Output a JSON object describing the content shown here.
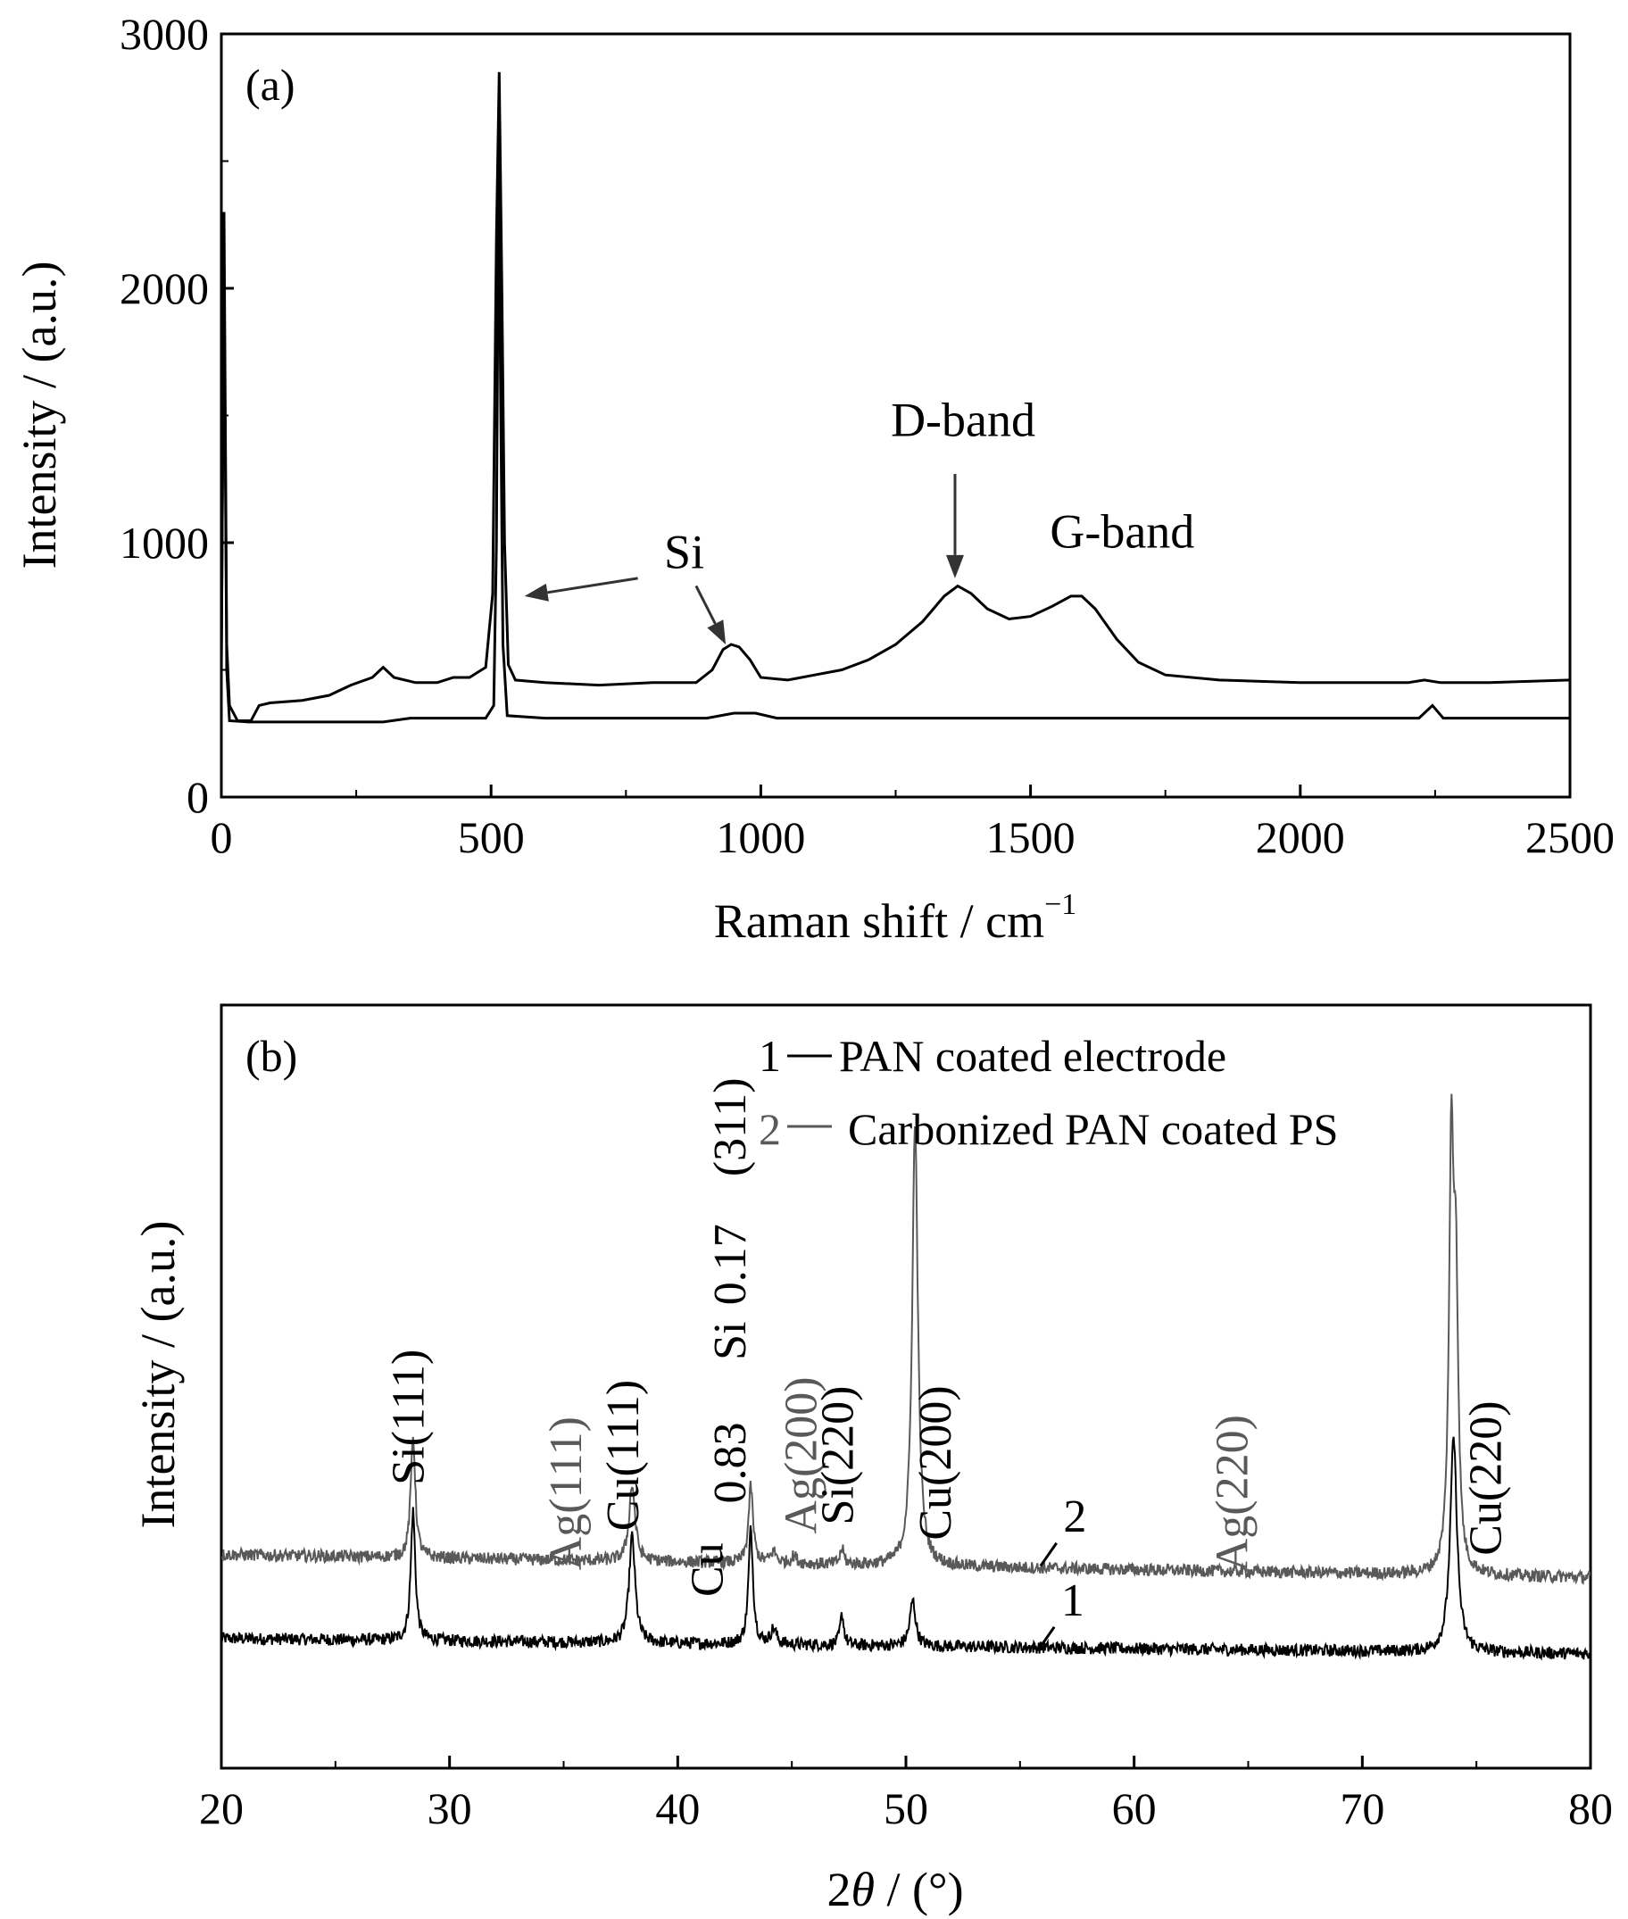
{
  "chart_data": [
    {
      "type": "line",
      "panel_label": "(a)",
      "xlabel": "Raman shift / cm",
      "xlabel_sup": "−1",
      "ylabel": "Intensity / (a.u.)",
      "xlim": [
        0,
        2500
      ],
      "ylim": [
        0,
        3000
      ],
      "xticks": [
        0,
        500,
        1000,
        1500,
        2000,
        2500
      ],
      "yticks": [
        0,
        1000,
        2000,
        3000
      ],
      "xtick_labels": [
        "0",
        "500",
        "1000",
        "1500",
        "2000",
        "2500"
      ],
      "ytick_labels": [
        "0",
        "1000",
        "2000",
        "3000"
      ],
      "grid": false,
      "series": [
        {
          "color": "#000000",
          "points": [
            [
              0,
              480
            ],
            [
              5,
              2300
            ],
            [
              10,
              600
            ],
            [
              15,
              360
            ],
            [
              30,
              300
            ],
            [
              55,
              300
            ],
            [
              70,
              360
            ],
            [
              90,
              370
            ],
            [
              150,
              380
            ],
            [
              200,
              400
            ],
            [
              240,
              440
            ],
            [
              280,
              470
            ],
            [
              300,
              510
            ],
            [
              320,
              470
            ],
            [
              360,
              450
            ],
            [
              400,
              450
            ],
            [
              430,
              470
            ],
            [
              460,
              470
            ],
            [
              490,
              510
            ],
            [
              503,
              800
            ],
            [
              510,
              2200
            ],
            [
              515,
              2850
            ],
            [
              520,
              2000
            ],
            [
              525,
              1000
            ],
            [
              532,
              520
            ],
            [
              545,
              460
            ],
            [
              600,
              450
            ],
            [
              700,
              440
            ],
            [
              800,
              450
            ],
            [
              880,
              450
            ],
            [
              910,
              500
            ],
            [
              930,
              580
            ],
            [
              945,
              600
            ],
            [
              960,
              590
            ],
            [
              980,
              540
            ],
            [
              1000,
              470
            ],
            [
              1050,
              460
            ],
            [
              1100,
              480
            ],
            [
              1150,
              500
            ],
            [
              1200,
              540
            ],
            [
              1250,
              600
            ],
            [
              1300,
              690
            ],
            [
              1340,
              790
            ],
            [
              1365,
              830
            ],
            [
              1390,
              800
            ],
            [
              1420,
              740
            ],
            [
              1460,
              700
            ],
            [
              1500,
              710
            ],
            [
              1540,
              750
            ],
            [
              1575,
              790
            ],
            [
              1595,
              790
            ],
            [
              1620,
              740
            ],
            [
              1660,
              620
            ],
            [
              1700,
              530
            ],
            [
              1750,
              480
            ],
            [
              1850,
              460
            ],
            [
              2000,
              450
            ],
            [
              2200,
              450
            ],
            [
              2230,
              460
            ],
            [
              2260,
              450
            ],
            [
              2350,
              450
            ],
            [
              2500,
              460
            ]
          ]
        },
        {
          "color": "#000000",
          "points": [
            [
              0,
              550
            ],
            [
              5,
              2100
            ],
            [
              10,
              500
            ],
            [
              15,
              300
            ],
            [
              50,
              295
            ],
            [
              150,
              295
            ],
            [
              300,
              295
            ],
            [
              350,
              310
            ],
            [
              400,
              310
            ],
            [
              490,
              310
            ],
            [
              505,
              360
            ],
            [
              510,
              1000
            ],
            [
              514,
              2500
            ],
            [
              518,
              1500
            ],
            [
              522,
              600
            ],
            [
              530,
              320
            ],
            [
              600,
              310
            ],
            [
              900,
              310
            ],
            [
              950,
              330
            ],
            [
              990,
              330
            ],
            [
              1030,
              310
            ],
            [
              1200,
              310
            ],
            [
              1500,
              310
            ],
            [
              2000,
              310
            ],
            [
              2220,
              310
            ],
            [
              2245,
              360
            ],
            [
              2265,
              310
            ],
            [
              2500,
              310
            ]
          ]
        }
      ],
      "annotations": [
        {
          "text": "Si",
          "x": 858,
          "y": 900
        },
        {
          "text": "D-band",
          "x": 1375,
          "y": 1420
        },
        {
          "text": "G-band",
          "x": 1670,
          "y": 980
        }
      ],
      "arrows": [
        {
          "from": [
            772,
            860
          ],
          "to": [
            562,
            790
          ]
        },
        {
          "from": [
            880,
            830
          ],
          "to": [
            935,
            600
          ]
        },
        {
          "from": [
            1360,
            1270
          ],
          "to": [
            1360,
            860
          ]
        }
      ]
    },
    {
      "type": "line",
      "panel_label": "(b)",
      "xlabel_pre": "2",
      "xlabel_theta": "θ",
      "xlabel_post": " / (°)",
      "ylabel": "Intensity / (a.u.)",
      "xlim": [
        20,
        80
      ],
      "ylim": [
        0,
        100
      ],
      "xticks": [
        20,
        30,
        40,
        50,
        60,
        70,
        80
      ],
      "xtick_labels": [
        "20",
        "30",
        "40",
        "50",
        "60",
        "70",
        "80"
      ],
      "yticks": [],
      "grid": false,
      "legend": {
        "position": "top-right",
        "entries": [
          {
            "marker": "1",
            "label": "PAN coated electrode",
            "color": "#000000"
          },
          {
            "marker": "2",
            "label": "Carbonized PAN coated PS",
            "color": "#595959"
          }
        ]
      },
      "series": [
        {
          "name": "PAN coated electrode",
          "color": "#000000",
          "baseline": [
            [
              20,
              17
            ],
            [
              80,
              15
            ]
          ],
          "noise": 0.8,
          "peaks": [
            {
              "x": 28.4,
              "height": 17,
              "width": 0.12
            },
            {
              "x": 38.0,
              "height": 14,
              "width": 0.16
            },
            {
              "x": 43.2,
              "height": 15,
              "width": 0.12
            },
            {
              "x": 44.2,
              "height": 2,
              "width": 0.15
            },
            {
              "x": 47.2,
              "height": 4,
              "width": 0.1
            },
            {
              "x": 50.3,
              "height": 6,
              "width": 0.15
            },
            {
              "x": 74.0,
              "height": 28,
              "width": 0.18
            }
          ]
        },
        {
          "name": "Carbonized PAN coated PS",
          "color": "#595959",
          "baseline": [
            [
              20,
              28
            ],
            [
              80,
              25
            ]
          ],
          "noise": 0.8,
          "peaks": [
            {
              "x": 28.4,
              "height": 16,
              "width": 0.12
            },
            {
              "x": 38.0,
              "height": 10,
              "width": 0.16
            },
            {
              "x": 43.2,
              "height": 10,
              "width": 0.12
            },
            {
              "x": 44.2,
              "height": 1.5,
              "width": 0.15
            },
            {
              "x": 45.1,
              "height": 1,
              "width": 0.15
            },
            {
              "x": 47.2,
              "height": 2,
              "width": 0.1
            },
            {
              "x": 50.4,
              "height": 58,
              "width": 0.15
            },
            {
              "x": 73.9,
              "height": 53,
              "width": 0.12
            },
            {
              "x": 74.1,
              "height": 35,
              "width": 0.12
            }
          ]
        }
      ],
      "peak_labels": [
        {
          "text": "Si(111)",
          "x": 28.4,
          "y": 46,
          "color": "#000000"
        },
        {
          "text": "Ag(111)",
          "x": 35.3,
          "y": 36,
          "color": "#595959"
        },
        {
          "text": "Cu(111)",
          "x": 37.8,
          "y": 41,
          "color": "#000000"
        },
        {
          "text": "Cu",
          "x": 41.5,
          "y": 26,
          "color": "#000000"
        },
        {
          "text": "0.83",
          "x": 42.5,
          "y": 40,
          "color": "#000000"
        },
        {
          "text": "Si",
          "x": 42.5,
          "y": 56,
          "color": "#000000"
        },
        {
          "text": "0.17",
          "x": 42.5,
          "y": 66,
          "color": "#000000"
        },
        {
          "text": "(311)",
          "x": 42.5,
          "y": 84,
          "color": "#000000"
        },
        {
          "text": "Ag(200)",
          "x": 45.6,
          "y": 41,
          "color": "#595959"
        },
        {
          "text": "Si(220)",
          "x": 47.2,
          "y": 41,
          "color": "#000000"
        },
        {
          "text": "Cu(200)",
          "x": 51.5,
          "y": 40,
          "color": "#000000"
        },
        {
          "text": "Ag(220)",
          "x": 64.5,
          "y": 36,
          "color": "#595959"
        },
        {
          "text": "Cu(220)",
          "x": 75.6,
          "y": 38,
          "color": "#000000"
        }
      ],
      "series_labels": [
        {
          "text": "2",
          "x": 56.9,
          "y": 31
        },
        {
          "text": "1",
          "x": 56.8,
          "y": 20
        }
      ],
      "series_label_ticks": [
        {
          "from": [
            55.9,
            26.5
          ],
          "to": [
            56.6,
            29.5
          ]
        },
        {
          "from": [
            55.8,
            15.5
          ],
          "to": [
            56.5,
            18.5
          ]
        }
      ]
    }
  ]
}
